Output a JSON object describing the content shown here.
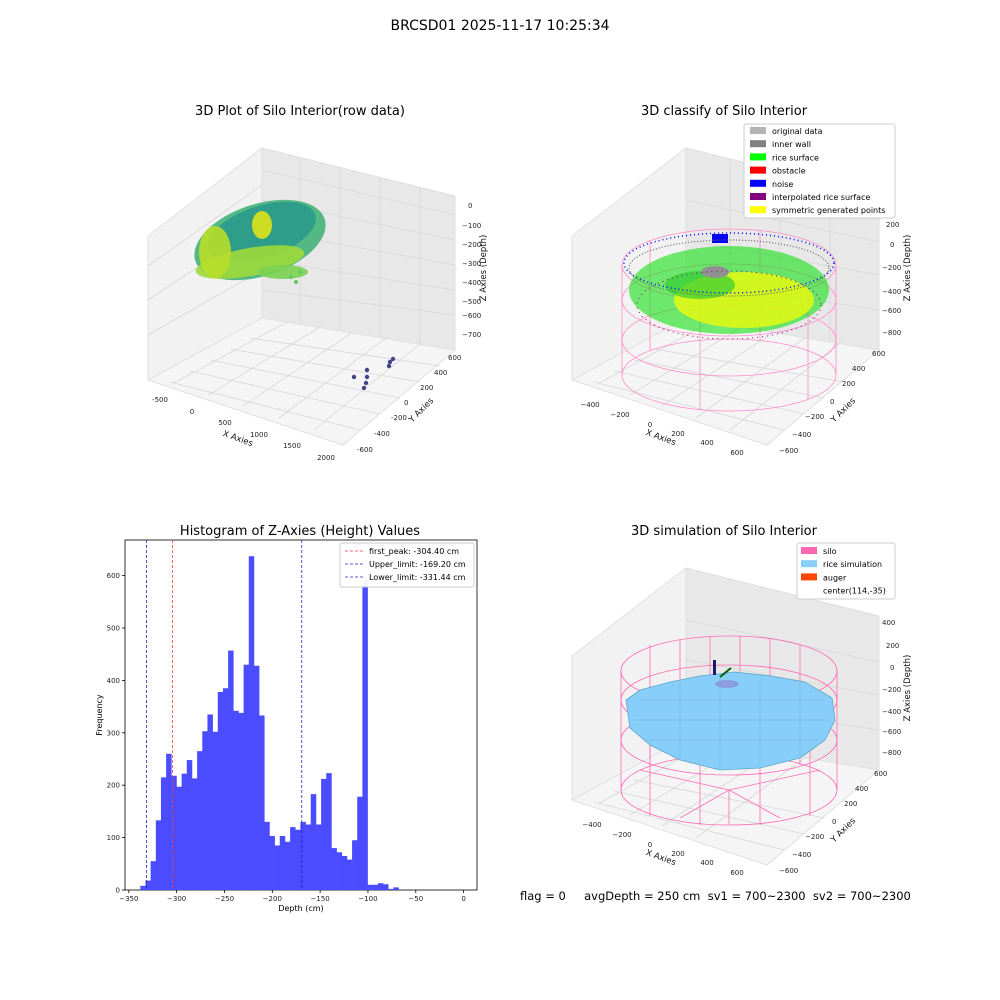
{
  "figure": {
    "suptitle": "BRCSD01 2025-11-17 10:25:34",
    "status_line": "flag = 0     avgDepth = 250 cm  sv1 = 700~2300  sv2 = 700~2300"
  },
  "colors": {
    "hist_bar": "#4b4bff",
    "first_peak": "#ff3b3b",
    "limit": "#2323c8",
    "silo": "#ff69b4",
    "rice": "#87cefa",
    "auger": "#ff4500",
    "original": "#b4b4b4",
    "inner_wall": "#808080",
    "rice_surface": "#00ff00",
    "obstacle": "#ff0000",
    "noise": "#0000ff",
    "interpolated": "#800080",
    "symmetric": "#ffff00"
  },
  "panels": {
    "raw": {
      "title": "3D Plot of Silo Interior(row data)",
      "x_label": "X Axies",
      "y_label": "Y Axies",
      "z_label": "Z Axies (Depth)",
      "x_ticks": [
        "-500",
        "0",
        "500",
        "1000",
        "1500",
        "2000"
      ],
      "y_ticks": [
        "-600",
        "-400",
        "-200",
        "0",
        "200",
        "400",
        "600"
      ],
      "z_ticks": [
        "0",
        "−100",
        "−200",
        "−300",
        "−400",
        "−500",
        "−600",
        "−700"
      ]
    },
    "classify": {
      "title": "3D classify of Silo Interior",
      "x_label": "X Axies",
      "y_label": "Y Axies",
      "z_label": "Z Axies (Depth)",
      "x_ticks": [
        "−400",
        "−200",
        "0",
        "200",
        "400",
        "600"
      ],
      "y_ticks": [
        "−600",
        "−400",
        "−200",
        "0",
        "200",
        "400",
        "600"
      ],
      "z_ticks": [
        "200",
        "0",
        "−200",
        "−400",
        "−600",
        "−800"
      ],
      "legend": [
        {
          "label": "original data",
          "color": "#b4b4b4"
        },
        {
          "label": "inner wall",
          "color": "#808080"
        },
        {
          "label": "rice surface",
          "color": "#00ff00"
        },
        {
          "label": "obstacle",
          "color": "#ff0000"
        },
        {
          "label": "noise",
          "color": "#0000ff"
        },
        {
          "label": "interpolated rice surface",
          "color": "#800080"
        },
        {
          "label": "symmetric generated points",
          "color": "#ffff00"
        }
      ]
    },
    "simulation": {
      "title": "3D simulation of Silo Interior",
      "x_label": "X Axies",
      "y_label": "Y Axies",
      "z_label": "Z Axies (Depth)",
      "x_ticks": [
        "−400",
        "−200",
        "0",
        "200",
        "400",
        "600"
      ],
      "y_ticks": [
        "−600",
        "−400",
        "−200",
        "0",
        "200",
        "400",
        "600"
      ],
      "z_ticks": [
        "400",
        "200",
        "0",
        "−200",
        "−400",
        "−600",
        "−800"
      ],
      "legend": [
        {
          "label": "silo",
          "color": "#ff69b4"
        },
        {
          "label": "rice simulation",
          "color": "#87cefa"
        },
        {
          "label": "auger",
          "color": "#ff4500"
        },
        {
          "label": "center(114,-35)",
          "color": ""
        }
      ]
    }
  },
  "chart_data": {
    "type": "bar",
    "title": "Histogram of Z-Axies (Height) Values",
    "xlabel": "Depth (cm)",
    "ylabel": "Frequency",
    "xlim": [
      -354,
      14
    ],
    "ylim": [
      0,
      668
    ],
    "x_ticks": [
      -350,
      -300,
      -250,
      -200,
      -150,
      -100,
      -50,
      0
    ],
    "x_tick_labels": [
      "−350",
      "−300",
      "−250",
      "−200",
      "−150",
      "−100",
      "−50",
      "0"
    ],
    "y_ticks": [
      0,
      100,
      200,
      300,
      400,
      500,
      600
    ],
    "bin_start": -338,
    "bin_width": 5.4,
    "values": [
      8,
      18,
      55,
      133,
      215,
      260,
      218,
      197,
      222,
      248,
      213,
      265,
      303,
      335,
      302,
      378,
      385,
      457,
      342,
      338,
      430,
      637,
      428,
      333,
      130,
      103,
      85,
      103,
      92,
      120,
      115,
      130,
      125,
      183,
      125,
      212,
      223,
      80,
      72,
      65,
      58,
      95,
      178,
      590,
      10,
      10,
      13,
      11,
      2,
      5
    ],
    "lines": [
      {
        "label": "first_peak: -304.40 cm",
        "x": -304.4,
        "color": "#ff3b3b"
      },
      {
        "label": "Upper_limit: -169.20 cm",
        "x": -169.2,
        "color": "#2323c8"
      },
      {
        "label": "Lower_limit: -331.44 cm",
        "x": -331.44,
        "color": "#2323c8"
      }
    ]
  }
}
